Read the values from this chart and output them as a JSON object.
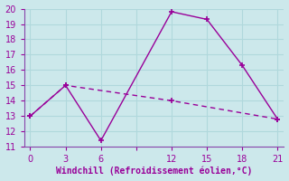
{
  "line1_x": [
    0,
    3,
    6,
    12,
    15,
    18,
    21
  ],
  "line1_y": [
    13,
    15,
    11.4,
    19.8,
    19.3,
    16.3,
    12.8
  ],
  "line2_x": [
    0,
    3,
    12,
    21
  ],
  "line2_y": [
    13,
    15,
    14.0,
    12.8
  ],
  "line_color": "#990099",
  "bg_color": "#cce8eb",
  "grid_color": "#b0d8dc",
  "spine_color": "#8844aa",
  "xlabel": "Windchill (Refroidissement éolien,°C)",
  "xlim": [
    -0.5,
    21.5
  ],
  "ylim": [
    11,
    20
  ],
  "xticks": [
    0,
    3,
    6,
    9,
    12,
    15,
    18,
    21
  ],
  "xtick_labels": [
    "0",
    "3",
    "6",
    "",
    "12",
    "15",
    "18",
    "21"
  ],
  "yticks": [
    11,
    12,
    13,
    14,
    15,
    16,
    17,
    18,
    19,
    20
  ],
  "marker": "+"
}
